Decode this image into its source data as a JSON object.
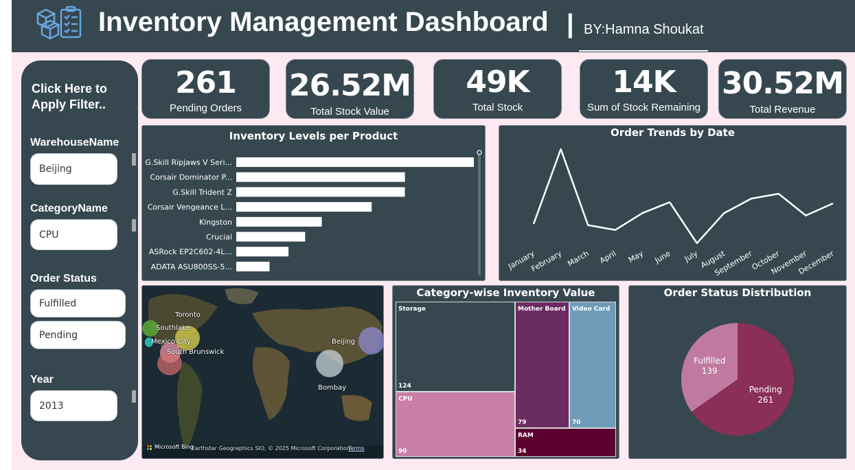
{
  "header": {
    "title": "Inventory Management Dashboard",
    "separator": "|",
    "byline": "BY:Hamna Shoukat",
    "logo_icon": "inventory-clipboard-icon"
  },
  "filters": {
    "heading_line1": "Click Here to",
    "heading_line2": "Apply Filter..",
    "warehouse": {
      "label": "WarehouseName",
      "value": "Beijing"
    },
    "category": {
      "label": "CategoryName",
      "value": "CPU"
    },
    "order_status": {
      "label": "Order Status",
      "options": [
        "Fulfilled",
        "Pending"
      ]
    },
    "year": {
      "label": "Year",
      "value": "2013"
    }
  },
  "kpis": [
    {
      "value": "261",
      "label": "Pending Orders"
    },
    {
      "value": "26.52M",
      "label": "Total Stock Value"
    },
    {
      "value": "49K",
      "label": "Total Stock"
    },
    {
      "value": "14K",
      "label": "Sum of Stock Remaining"
    },
    {
      "value": "30.52M",
      "label": "Total Revenue"
    }
  ],
  "colors": {
    "panel": "#36474f",
    "background": "#fde9f1",
    "bar": "#ffffff",
    "line": "#ffffff",
    "treemap_storage": "#36474f",
    "treemap_cpu": "#c97fa8",
    "treemap_motherboard": "#6b2c62",
    "treemap_videocard": "#6f9bb8",
    "treemap_ram": "#5c0030",
    "pie_pending": "#8a2f58",
    "pie_fulfilled": "#c07aa1"
  },
  "chart_data": [
    {
      "type": "bar",
      "title": "Inventory Levels per Product",
      "orientation": "horizontal",
      "categories": [
        "G.Skill Ripjaws V Seri...",
        "Corsair Dominator P...",
        "G.Skill Trident Z",
        "Corsair Vengeance L...",
        "Kingston",
        "Crucial",
        "ASRock EP2C602-4L...",
        "ADATA ASU800SS-5..."
      ],
      "values": [
        100,
        71,
        71,
        57,
        36,
        29,
        22,
        14
      ]
    },
    {
      "type": "line",
      "title": "Order Trends by Date",
      "categories": [
        "January",
        "February",
        "March",
        "April",
        "May",
        "June",
        "July",
        "August",
        "September",
        "October",
        "November",
        "December"
      ],
      "values": [
        20,
        82,
        19,
        15,
        29,
        38,
        4,
        29,
        41,
        45,
        27,
        37
      ]
    },
    {
      "type": "treemap",
      "title": "Category-wise Inventory Value",
      "items": [
        {
          "name": "Storage",
          "value": 124
        },
        {
          "name": "CPU",
          "value": 90
        },
        {
          "name": "Mother Board",
          "value": 79
        },
        {
          "name": "Video Card",
          "value": 70
        },
        {
          "name": "RAM",
          "value": 34
        }
      ]
    },
    {
      "type": "pie",
      "title": "Order Status Distribution",
      "slices": [
        {
          "name": "Pending",
          "value": 261
        },
        {
          "name": "Fulfilled",
          "value": 139
        }
      ]
    }
  ],
  "map": {
    "locations": [
      "Toronto",
      "Southlake",
      "Mexico City",
      "South Brunswick",
      "Beijing",
      "Bombay"
    ],
    "attribution_brand": "Microsoft Bing",
    "attribution": "Earthstar Geographics SIO, © 2025 Microsoft Corporation",
    "terms": "Terms"
  }
}
